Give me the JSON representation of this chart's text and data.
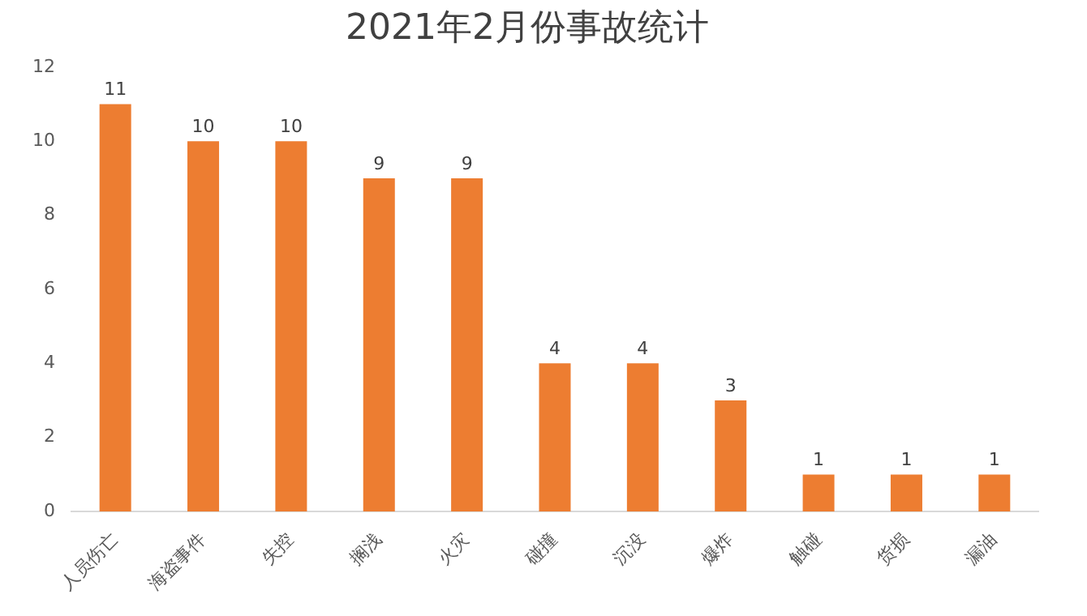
{
  "chart_data": {
    "type": "bar",
    "title": "2021年2月份事故统计",
    "categories": [
      "人员伤亡",
      "海盗事件",
      "失控",
      "搁浅",
      "火灾",
      "碰撞",
      "沉没",
      "爆炸",
      "触碰",
      "货损",
      "漏油"
    ],
    "values": [
      11,
      10,
      10,
      9,
      9,
      4,
      4,
      3,
      1,
      1,
      1
    ],
    "color": "#ed7d31",
    "ylim": [
      0,
      12
    ],
    "yticks": [
      0,
      2,
      4,
      6,
      8,
      10,
      12
    ],
    "data_labels": true
  }
}
